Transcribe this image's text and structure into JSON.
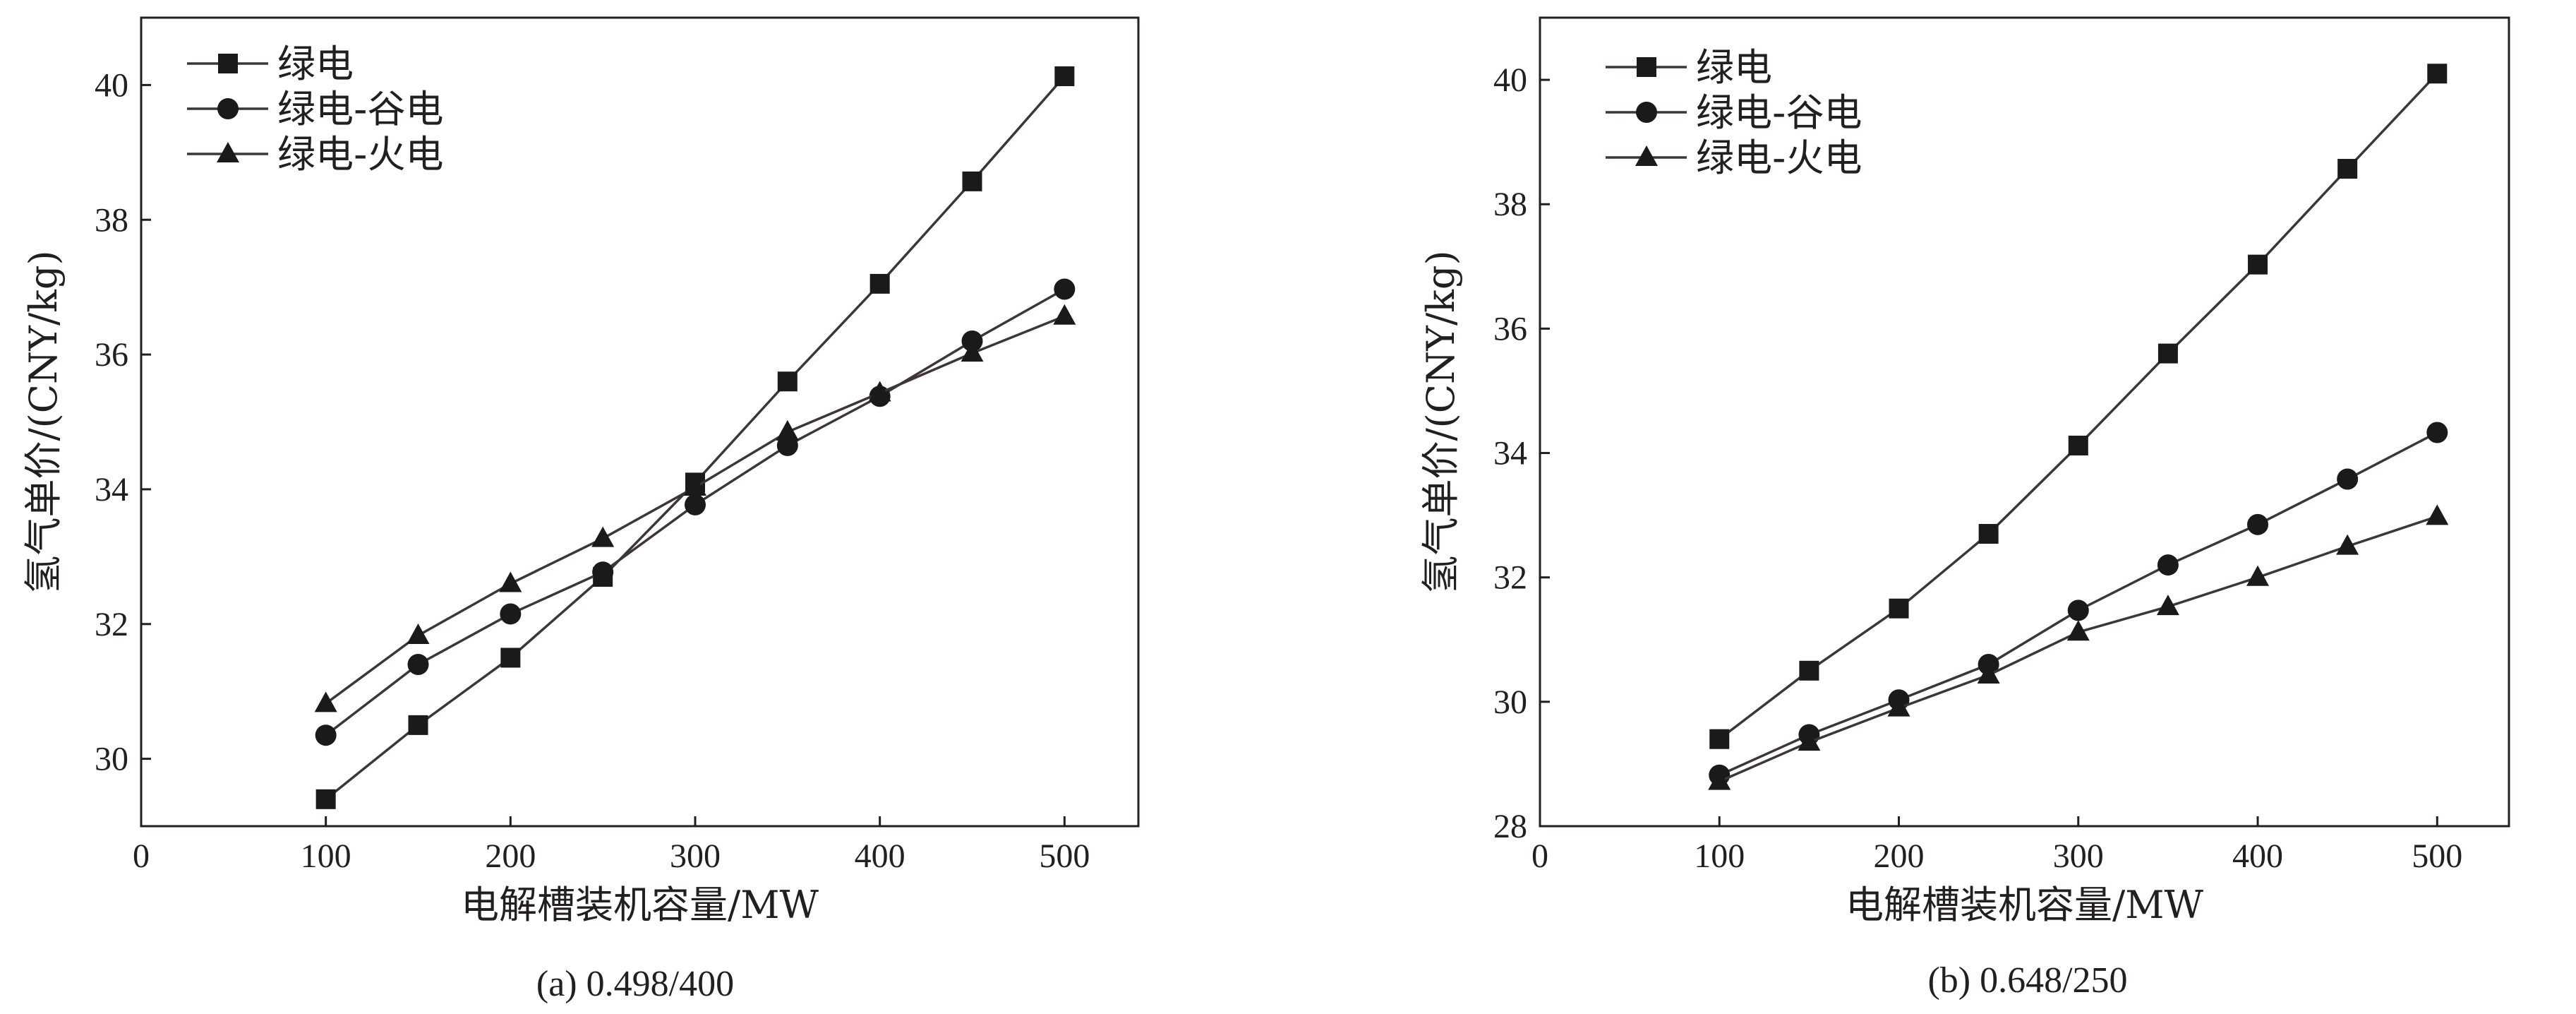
{
  "chart_data": [
    {
      "type": "line",
      "caption": "(a) 0.498/400",
      "xlabel": "电解槽装机容量/MW",
      "ylabel": "氢气单价/(CNY/kg)",
      "xlim": [
        0,
        540
      ],
      "ylim": [
        29,
        41
      ],
      "xticks": [
        0,
        100,
        200,
        300,
        400,
        500
      ],
      "yticks": [
        30,
        32,
        34,
        36,
        38,
        40
      ],
      "x": [
        100,
        150,
        200,
        250,
        300,
        350,
        400,
        450,
        500
      ],
      "legend_position": "top-left",
      "series": [
        {
          "name": "绿电",
          "marker": "square",
          "values": [
            29.4,
            30.5,
            31.5,
            32.7,
            34.1,
            35.6,
            37.05,
            38.57,
            40.13
          ]
        },
        {
          "name": "绿电-谷电",
          "marker": "circle",
          "values": [
            30.35,
            31.4,
            32.15,
            32.77,
            33.77,
            34.65,
            35.38,
            36.2,
            36.97
          ]
        },
        {
          "name": "绿电-火电",
          "marker": "triangle",
          "values": [
            30.82,
            31.83,
            32.6,
            33.27,
            34.03,
            34.85,
            35.43,
            36.02,
            36.57
          ]
        }
      ]
    },
    {
      "type": "line",
      "caption": "(b) 0.648/250",
      "xlabel": "电解槽装机容量/MW",
      "ylabel": "氢气单价/(CNY/kg)",
      "xlim": [
        0,
        540
      ],
      "ylim": [
        28,
        41
      ],
      "xticks": [
        0,
        100,
        200,
        300,
        400,
        500
      ],
      "yticks": [
        28,
        30,
        32,
        34,
        36,
        38,
        40
      ],
      "x": [
        100,
        150,
        200,
        250,
        300,
        350,
        400,
        450,
        500
      ],
      "legend_position": "top-left",
      "series": [
        {
          "name": "绿电",
          "marker": "square",
          "values": [
            29.4,
            30.5,
            31.5,
            32.7,
            34.12,
            35.6,
            37.03,
            38.57,
            40.1
          ]
        },
        {
          "name": "绿电-谷电",
          "marker": "circle",
          "values": [
            28.82,
            29.47,
            30.03,
            30.6,
            31.47,
            32.2,
            32.85,
            33.58,
            34.33
          ]
        },
        {
          "name": "绿电-火电",
          "marker": "triangle",
          "values": [
            28.72,
            29.35,
            29.9,
            30.43,
            31.12,
            31.53,
            32.0,
            32.5,
            32.98
          ]
        }
      ]
    }
  ],
  "colors": {
    "axis": "#231f20",
    "line": "#3d3536",
    "marker": "#1a1a1a"
  }
}
